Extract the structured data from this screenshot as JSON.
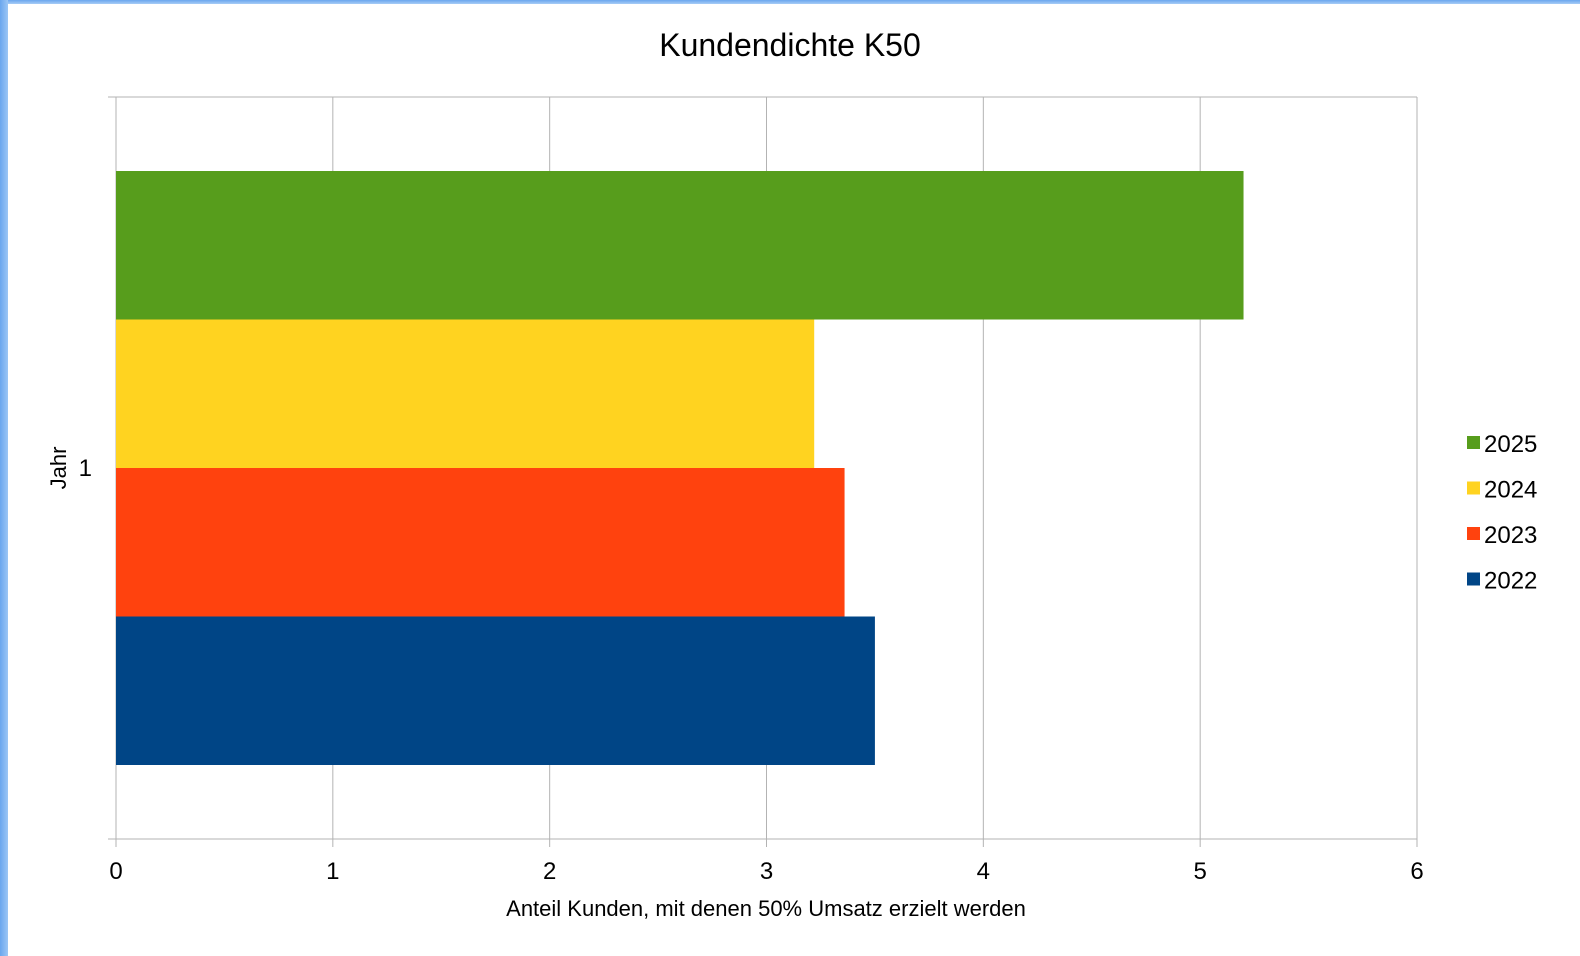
{
  "chart_data": {
    "type": "bar",
    "orientation": "horizontal",
    "title": "Kundendichte K50",
    "xlabel": "Anteil Kunden, mit denen 50% Umsatz erzielt werden",
    "ylabel": "Jahr",
    "categories": [
      "1"
    ],
    "xlim": [
      0,
      6
    ],
    "x_ticks": [
      "0",
      "1",
      "2",
      "3",
      "4",
      "5",
      "6"
    ],
    "grid": true,
    "legend_position": "right",
    "series": [
      {
        "name": "2025",
        "values": [
          5.2
        ],
        "color": "#579d1c"
      },
      {
        "name": "2024",
        "values": [
          3.22
        ],
        "color": "#ffd320"
      },
      {
        "name": "2023",
        "values": [
          3.36
        ],
        "color": "#ff420e"
      },
      {
        "name": "2022",
        "values": [
          3.5
        ],
        "color": "#004586"
      }
    ]
  }
}
